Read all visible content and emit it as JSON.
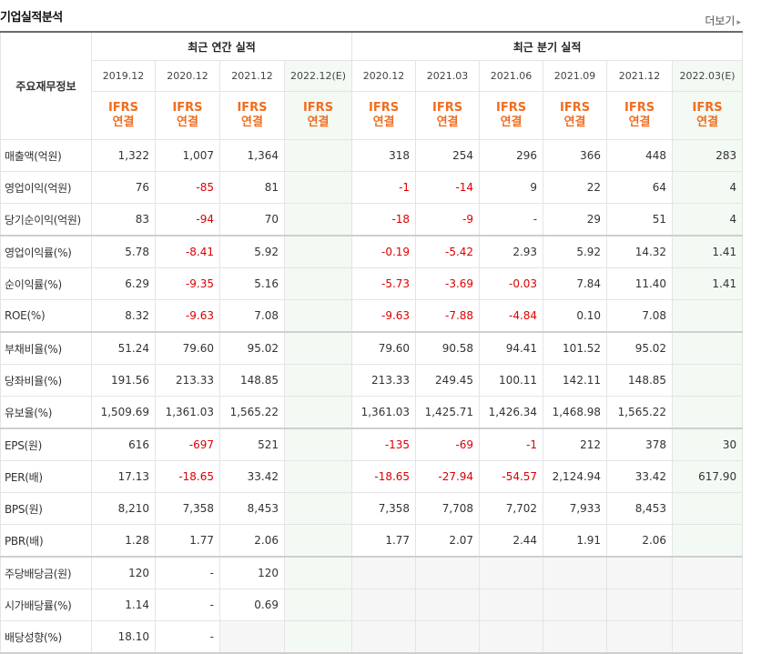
{
  "header": {
    "title": "기업실적분석",
    "more_label": "더보기",
    "more_arrow": "▸"
  },
  "table": {
    "corner_label": "주요재무정보",
    "annual_group": "최근 연간 실적",
    "quarter_group": "최근 분기 실적",
    "columns": [
      "2019.12",
      "2020.12",
      "2021.12",
      "2022.12(E)",
      "2020.12",
      "2021.03",
      "2021.06",
      "2021.09",
      "2021.12",
      "2022.03(E)"
    ],
    "ifrs_top": "IFRS",
    "ifrs_bottom": "연결",
    "rows": [
      {
        "label": "매출액(억원)",
        "values": [
          "1,322",
          "1,007",
          "1,364",
          "",
          "318",
          "254",
          "296",
          "366",
          "448",
          "283"
        ]
      },
      {
        "label": "영업이익(억원)",
        "values": [
          "76",
          "-85",
          "81",
          "",
          "-1",
          "-14",
          "9",
          "22",
          "64",
          "4"
        ]
      },
      {
        "label": "당기순이익(억원)",
        "values": [
          "83",
          "-94",
          "70",
          "",
          "-18",
          "-9",
          "-",
          "29",
          "51",
          "4"
        ]
      },
      {
        "label": "영업이익률(%)",
        "values": [
          "5.78",
          "-8.41",
          "5.92",
          "",
          "-0.19",
          "-5.42",
          "2.93",
          "5.92",
          "14.32",
          "1.41"
        ]
      },
      {
        "label": "순이익률(%)",
        "values": [
          "6.29",
          "-9.35",
          "5.16",
          "",
          "-5.73",
          "-3.69",
          "-0.03",
          "7.84",
          "11.40",
          "1.41"
        ]
      },
      {
        "label": "ROE(%)",
        "values": [
          "8.32",
          "-9.63",
          "7.08",
          "",
          "-9.63",
          "-7.88",
          "-4.84",
          "0.10",
          "7.08",
          ""
        ]
      },
      {
        "label": "부채비율(%)",
        "values": [
          "51.24",
          "79.60",
          "95.02",
          "",
          "79.60",
          "90.58",
          "94.41",
          "101.52",
          "95.02",
          ""
        ]
      },
      {
        "label": "당좌비율(%)",
        "values": [
          "191.56",
          "213.33",
          "148.85",
          "",
          "213.33",
          "249.45",
          "100.11",
          "142.11",
          "148.85",
          ""
        ]
      },
      {
        "label": "유보율(%)",
        "values": [
          "1,509.69",
          "1,361.03",
          "1,565.22",
          "",
          "1,361.03",
          "1,425.71",
          "1,426.34",
          "1,468.98",
          "1,565.22",
          ""
        ]
      },
      {
        "label": "EPS(원)",
        "values": [
          "616",
          "-697",
          "521",
          "",
          "-135",
          "-69",
          "-1",
          "212",
          "378",
          "30"
        ]
      },
      {
        "label": "PER(배)",
        "values": [
          "17.13",
          "-18.65",
          "33.42",
          "",
          "-18.65",
          "-27.94",
          "-54.57",
          "2,124.94",
          "33.42",
          "617.90"
        ]
      },
      {
        "label": "BPS(원)",
        "values": [
          "8,210",
          "7,358",
          "8,453",
          "",
          "7,358",
          "7,708",
          "7,702",
          "7,933",
          "8,453",
          ""
        ]
      },
      {
        "label": "PBR(배)",
        "values": [
          "1.28",
          "1.77",
          "2.06",
          "",
          "1.77",
          "2.07",
          "2.44",
          "1.91",
          "2.06",
          ""
        ]
      },
      {
        "label": "주당배당금(원)",
        "values": [
          "120",
          "-",
          "120",
          "",
          "",
          "",
          "",
          "",
          "",
          ""
        ]
      },
      {
        "label": "시가배당률(%)",
        "values": [
          "1.14",
          "-",
          "0.69",
          "",
          "",
          "",
          "",
          "",
          "",
          ""
        ]
      },
      {
        "label": "배당성향(%)",
        "values": [
          "18.10",
          "-",
          "",
          "",
          "",
          "",
          "",
          "",
          "",
          ""
        ]
      }
    ]
  }
}
